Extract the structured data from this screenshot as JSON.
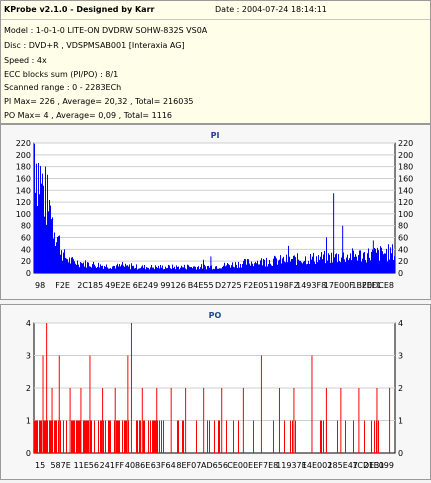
{
  "info": {
    "title": "KProbe v2.1.0 - Designed by Karr",
    "date": "Date : 2004-07-24 18:14:11",
    "lines": [
      "Model : 1-0-1-0 LITE-ON DVDRW SOHW-832S  VS0A",
      "Disc : DVD+R , VDSPMSAB001 [Interaxia AG]",
      "Speed : 4x",
      "ECC blocks sum (PI/PO) : 8/1",
      "Scanned range : 0 - 2283ECh",
      "PI Max= 226 , Average= 20,32 , Total= 216035",
      "PO Max= 4 , Average= 0,09 , Total= 1116"
    ]
  },
  "colors": {
    "pi_fill": "#0000ff",
    "po_fill": "#ff0000",
    "pi_title": "#2a3a9a",
    "po_title": "#1a4a8a",
    "grid": "#cfcfcf"
  },
  "chart_data": [
    {
      "type": "area",
      "title": "PI",
      "ylim": [
        0,
        220
      ],
      "yticks": [
        0,
        20,
        40,
        60,
        80,
        100,
        120,
        140,
        160,
        180,
        200,
        220
      ],
      "xticks": [
        "98",
        "F2E",
        "2C185",
        "49E2E",
        "6E249",
        "99126",
        "B4E55",
        "D2725",
        "F2E05",
        "1198F2",
        "1493F8",
        "17E00F",
        "1BFEF1",
        "20DCE8"
      ],
      "grid": "horizontal",
      "profile": {
        "x_fraction": [
          0,
          0.01,
          0.02,
          0.04,
          0.06,
          0.08,
          0.1,
          0.14,
          0.2,
          0.3,
          0.4,
          0.5,
          0.6,
          0.7,
          0.8,
          0.9,
          1.0
        ],
        "level": [
          220,
          175,
          150,
          110,
          70,
          30,
          20,
          16,
          12,
          10,
          10,
          11,
          18,
          22,
          26,
          30,
          35
        ]
      },
      "spikes": [
        {
          "x_fraction": 0.83,
          "value": 135
        },
        {
          "x_fraction": 0.855,
          "value": 80
        },
        {
          "x_fraction": 0.49,
          "value": 28
        },
        {
          "x_fraction": 0.94,
          "value": 55
        }
      ]
    },
    {
      "type": "bar",
      "title": "PO",
      "ylim": [
        0,
        4
      ],
      "yticks": [
        0,
        1,
        2,
        3,
        4
      ],
      "xticks": [
        "15",
        "587E",
        "11E56",
        "241FF",
        "4086E",
        "63F64",
        "8EF07",
        "AD656",
        "CE00E",
        "EF7E8",
        "11937E",
        "14E002",
        "185E47",
        "1CDE31",
        "21E099"
      ],
      "grid": "horizontal",
      "dense_until_fraction": 0.36,
      "spikes": [
        {
          "x_fraction": 0.025,
          "value": 3
        },
        {
          "x_fraction": 0.035,
          "value": 4
        },
        {
          "x_fraction": 0.05,
          "value": 2
        },
        {
          "x_fraction": 0.07,
          "value": 3
        },
        {
          "x_fraction": 0.1,
          "value": 2
        },
        {
          "x_fraction": 0.13,
          "value": 2
        },
        {
          "x_fraction": 0.155,
          "value": 3
        },
        {
          "x_fraction": 0.19,
          "value": 2
        },
        {
          "x_fraction": 0.225,
          "value": 2
        },
        {
          "x_fraction": 0.26,
          "value": 3
        },
        {
          "x_fraction": 0.27,
          "value": 4
        },
        {
          "x_fraction": 0.3,
          "value": 2
        },
        {
          "x_fraction": 0.34,
          "value": 2
        },
        {
          "x_fraction": 0.38,
          "value": 2
        },
        {
          "x_fraction": 0.42,
          "value": 2
        },
        {
          "x_fraction": 0.47,
          "value": 2
        },
        {
          "x_fraction": 0.52,
          "value": 2
        },
        {
          "x_fraction": 0.58,
          "value": 2
        },
        {
          "x_fraction": 0.63,
          "value": 3
        },
        {
          "x_fraction": 0.68,
          "value": 2
        },
        {
          "x_fraction": 0.72,
          "value": 2
        },
        {
          "x_fraction": 0.77,
          "value": 3
        },
        {
          "x_fraction": 0.81,
          "value": 2
        },
        {
          "x_fraction": 0.85,
          "value": 2
        },
        {
          "x_fraction": 0.9,
          "value": 2
        },
        {
          "x_fraction": 0.95,
          "value": 2
        },
        {
          "x_fraction": 0.985,
          "value": 2
        }
      ]
    }
  ]
}
